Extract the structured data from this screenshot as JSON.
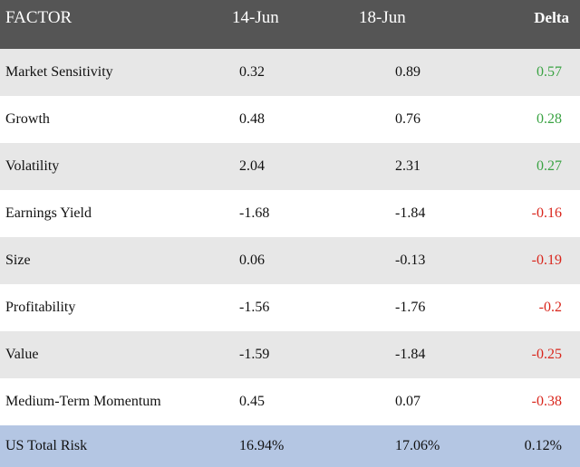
{
  "header": {
    "factor": "FACTOR",
    "date1": "14-Jun",
    "date2": "18-Jun",
    "delta": "Delta"
  },
  "rows": [
    {
      "factor": "Market Sensitivity",
      "v1": "0.32",
      "v2": "0.89",
      "delta": "0.57",
      "sign": "pos"
    },
    {
      "factor": "Growth",
      "v1": "0.48",
      "v2": "0.76",
      "delta": "0.28",
      "sign": "pos"
    },
    {
      "factor": "Volatility",
      "v1": "2.04",
      "v2": "2.31",
      "delta": "0.27",
      "sign": "pos"
    },
    {
      "factor": "Earnings Yield",
      "v1": "-1.68",
      "v2": "-1.84",
      "delta": "-0.16",
      "sign": "neg"
    },
    {
      "factor": "Size",
      "v1": "0.06",
      "v2": "-0.13",
      "delta": "-0.19",
      "sign": "neg"
    },
    {
      "factor": "Profitability",
      "v1": "-1.56",
      "v2": "-1.76",
      "delta": "-0.2",
      "sign": "neg"
    },
    {
      "factor": "Value",
      "v1": "-1.59",
      "v2": "-1.84",
      "delta": "-0.25",
      "sign": "neg"
    },
    {
      "factor": "Medium-Term Momentum",
      "v1": "0.45",
      "v2": "0.07",
      "delta": "-0.38",
      "sign": "neg"
    }
  ],
  "total": {
    "factor": "US Total Risk",
    "v1": "16.94%",
    "v2": "17.06%",
    "delta": "0.12%"
  },
  "colors": {
    "header_bg": "#555555",
    "row_shaded": "#e7e7e7",
    "total_bg": "#b4c6e3",
    "positive": "#3aa343",
    "negative": "#d9261c"
  }
}
